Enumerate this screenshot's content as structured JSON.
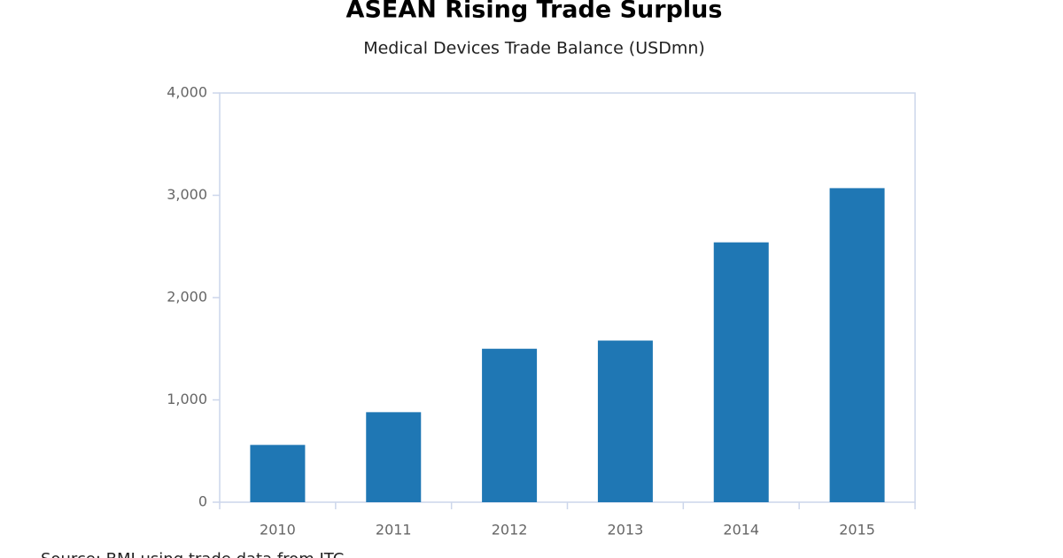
{
  "chart_data": {
    "type": "bar",
    "title": "ASEAN Rising Trade Surplus",
    "subtitle": "Medical Devices Trade Balance (USDmn)",
    "categories": [
      "2010",
      "2011",
      "2012",
      "2013",
      "2014",
      "2015"
    ],
    "values": [
      560,
      880,
      1500,
      1580,
      2540,
      3070
    ],
    "color": "#1f77b4",
    "ylim": [
      0,
      4000
    ],
    "yticks": [
      0,
      {
        "value": 1000,
        "label": "1,000"
      },
      {
        "value": 2000,
        "label": "2,000"
      },
      {
        "value": 3000,
        "label": "3,000"
      },
      {
        "value": 4000,
        "label": "4,000"
      }
    ],
    "source": "Source: BMI using trade data from ITC"
  }
}
